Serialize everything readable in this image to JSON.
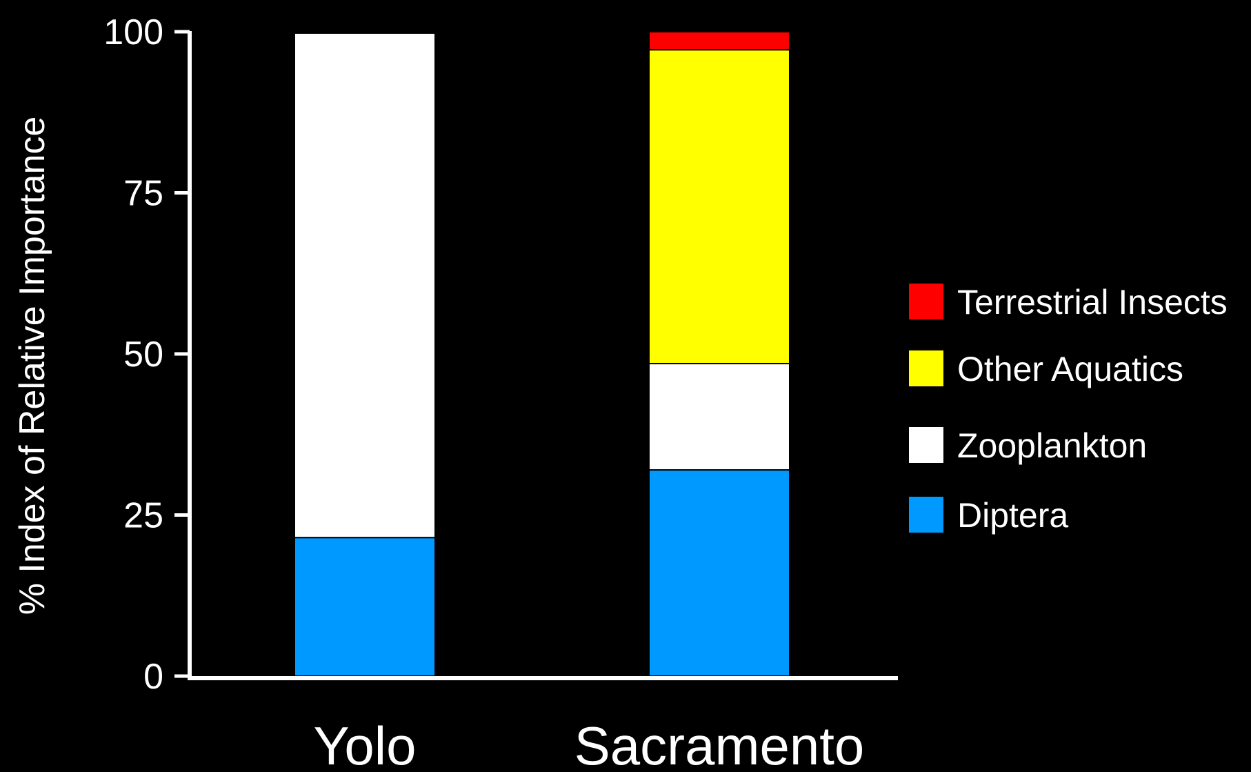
{
  "chart_data": {
    "type": "bar",
    "stacked": true,
    "categories": [
      "Yolo",
      "Sacramento"
    ],
    "ylabel": "% Index of Relative Importance",
    "xlabel": "",
    "ylim": [
      0,
      100
    ],
    "yticks": [
      0,
      25,
      50,
      75,
      100
    ],
    "ytick_labels": [
      "0",
      "25",
      "50",
      "75",
      "100"
    ],
    "grid": false,
    "legend_position": "right",
    "series": [
      {
        "name": "Diptera",
        "color": "#0099ff",
        "values": [
          21.5,
          32
        ]
      },
      {
        "name": "Zooplankton",
        "color": "#ffffff",
        "values": [
          78.3,
          16.5
        ]
      },
      {
        "name": "Other Aquatics",
        "color": "#ffff00",
        "values": [
          0,
          48.7
        ]
      },
      {
        "name": "Terrestrial Insects",
        "color": "#ff0000",
        "values": [
          0.2,
          2.8
        ]
      }
    ],
    "legend_order": [
      "Terrestrial Insects",
      "Other Aquatics",
      "Zooplankton",
      "Diptera"
    ]
  }
}
